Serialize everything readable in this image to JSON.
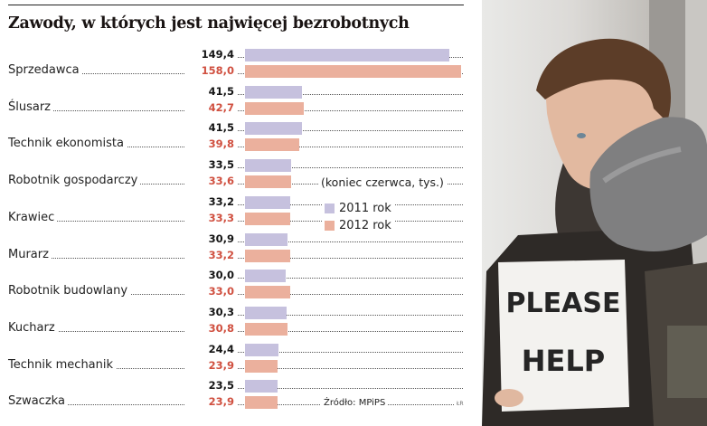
{
  "chart_data": {
    "type": "bar",
    "orientation": "horizontal",
    "title": "Zawody, w których jest najwięcej bezrobotnych",
    "subtitle": "(koniec czerwca, tys.)",
    "categories": [
      "Sprzedawca",
      "Ślusarz",
      "Technik ekonomista",
      "Robotnik gospodarczy",
      "Krawiec",
      "Murarz",
      "Robotnik budowlany",
      "Kucharz",
      "Technik mechanik",
      "Szwaczka"
    ],
    "series": [
      {
        "name": "2011 rok",
        "color": "#c6c1de",
        "values": [
          149.4,
          41.5,
          41.5,
          33.5,
          33.2,
          30.9,
          30.0,
          30.3,
          24.4,
          23.5
        ],
        "labels": [
          "149,4",
          "41,5",
          "41,5",
          "33,5",
          "33,2",
          "30,9",
          "30,0",
          "30,3",
          "24,4",
          "23,5"
        ]
      },
      {
        "name": "2012 rok",
        "color": "#ebb09d",
        "values": [
          158.0,
          42.7,
          39.8,
          33.6,
          33.3,
          33.2,
          33.0,
          30.8,
          23.9,
          23.9
        ],
        "labels": [
          "158,0",
          "42,7",
          "39,8",
          "33,6",
          "33,3",
          "33,2",
          "33,0",
          "30,8",
          "23,9",
          "23,9"
        ]
      }
    ],
    "xlabel": "",
    "ylabel": "",
    "xlim": [
      0,
      158
    ],
    "grid": false,
    "legend_position": "right-middle",
    "source": "Źródło: MPiPS",
    "credit": "ŁR"
  },
  "photo": {
    "description": "Young man in grey scarf holding a cardboard sign",
    "sign_text": [
      "PLEASE",
      "HELP"
    ]
  }
}
